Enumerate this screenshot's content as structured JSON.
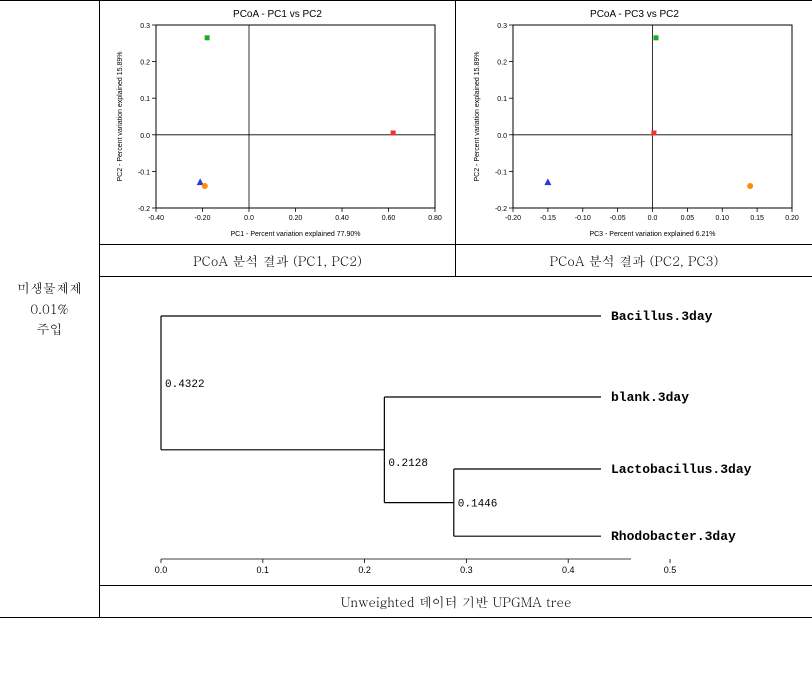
{
  "side_label_line1": "미생물제제",
  "side_label_line2": "0.01%",
  "side_label_line3": "주입",
  "pcoa1": {
    "type": "scatter",
    "title": "PCoA - PC1 vs PC2",
    "title_fontsize": 10,
    "xlabel": "PC1 - Percent variation explained 77.90%",
    "ylabel": "PC2 - Percent variation explained 15.89%",
    "label_fontsize": 7,
    "xlim": [
      -0.4,
      0.8
    ],
    "ylim": [
      -0.2,
      0.3
    ],
    "xticks": [
      -0.4,
      -0.2,
      0.0,
      0.2,
      0.4,
      0.6,
      0.8
    ],
    "yticks": [
      -0.2,
      -0.1,
      0.0,
      0.1,
      0.2,
      0.3
    ],
    "tick_fontsize": 7,
    "background_color": "#ffffff",
    "frame_color": "#000000",
    "axis_cross_color": "#000000",
    "axis_cross_x": 0.0,
    "axis_cross_y": 0.0,
    "points": [
      {
        "x": -0.18,
        "y": 0.265,
        "marker": "square",
        "color": "#22aa22",
        "size": 5
      },
      {
        "x": 0.62,
        "y": 0.005,
        "marker": "square",
        "color": "#ee3333",
        "size": 5
      },
      {
        "x": -0.21,
        "y": -0.13,
        "marker": "triangle",
        "color": "#3333dd",
        "size": 6
      },
      {
        "x": -0.19,
        "y": -0.14,
        "marker": "circle",
        "color": "#ff8c00",
        "size": 5
      }
    ],
    "caption": "PCoA 분석 결과 (PC1, PC2)"
  },
  "pcoa2": {
    "type": "scatter",
    "title": "PCoA - PC3 vs PC2",
    "title_fontsize": 10,
    "xlabel": "PC3 - Percent variation explained 6.21%",
    "ylabel": "PC2 - Percent variation explained 15.89%",
    "label_fontsize": 7,
    "xlim": [
      -0.2,
      0.2
    ],
    "ylim": [
      -0.2,
      0.3
    ],
    "xticks": [
      -0.2,
      -0.15,
      -0.1,
      -0.05,
      0.0,
      0.05,
      0.1,
      0.15,
      0.2
    ],
    "yticks": [
      -0.2,
      -0.1,
      0.0,
      0.1,
      0.2,
      0.3
    ],
    "tick_fontsize": 7,
    "background_color": "#ffffff",
    "frame_color": "#000000",
    "axis_cross_color": "#000000",
    "axis_cross_x": 0.0,
    "axis_cross_y": 0.0,
    "points": [
      {
        "x": 0.005,
        "y": 0.265,
        "marker": "square",
        "color": "#22aa22",
        "size": 5
      },
      {
        "x": 0.002,
        "y": 0.005,
        "marker": "square",
        "color": "#ee3333",
        "size": 5
      },
      {
        "x": -0.15,
        "y": -0.13,
        "marker": "triangle",
        "color": "#3333dd",
        "size": 6
      },
      {
        "x": 0.14,
        "y": -0.14,
        "marker": "circle",
        "color": "#ff8c00",
        "size": 5
      }
    ],
    "caption": "PCoA 분석 결과 (PC2, PC3)"
  },
  "tree": {
    "type": "tree",
    "caption": "Unweighted 데이터 기반 UPGMA tree",
    "line_color": "#000000",
    "line_width": 1.2,
    "label_fontsize": 13,
    "value_fontsize": 11,
    "axis": {
      "ticks": [
        0.0,
        0.1,
        0.2,
        0.3,
        0.4,
        0.5
      ],
      "fontsize": 9
    },
    "leaves": [
      {
        "label": "Bacillus.3day",
        "depth": 0.4322
      },
      {
        "label": "blank.3day",
        "depth": 0.4322
      },
      {
        "label": "Lactobacillus.3day",
        "depth": 0.4322
      },
      {
        "label": "Rhodobacter.3day",
        "depth": 0.4322
      }
    ],
    "nodes": [
      {
        "label": "0.4322",
        "depth": 0.0
      },
      {
        "label": "0.2128",
        "depth": 0.2194
      },
      {
        "label": "0.1446",
        "depth": 0.2876
      }
    ]
  }
}
